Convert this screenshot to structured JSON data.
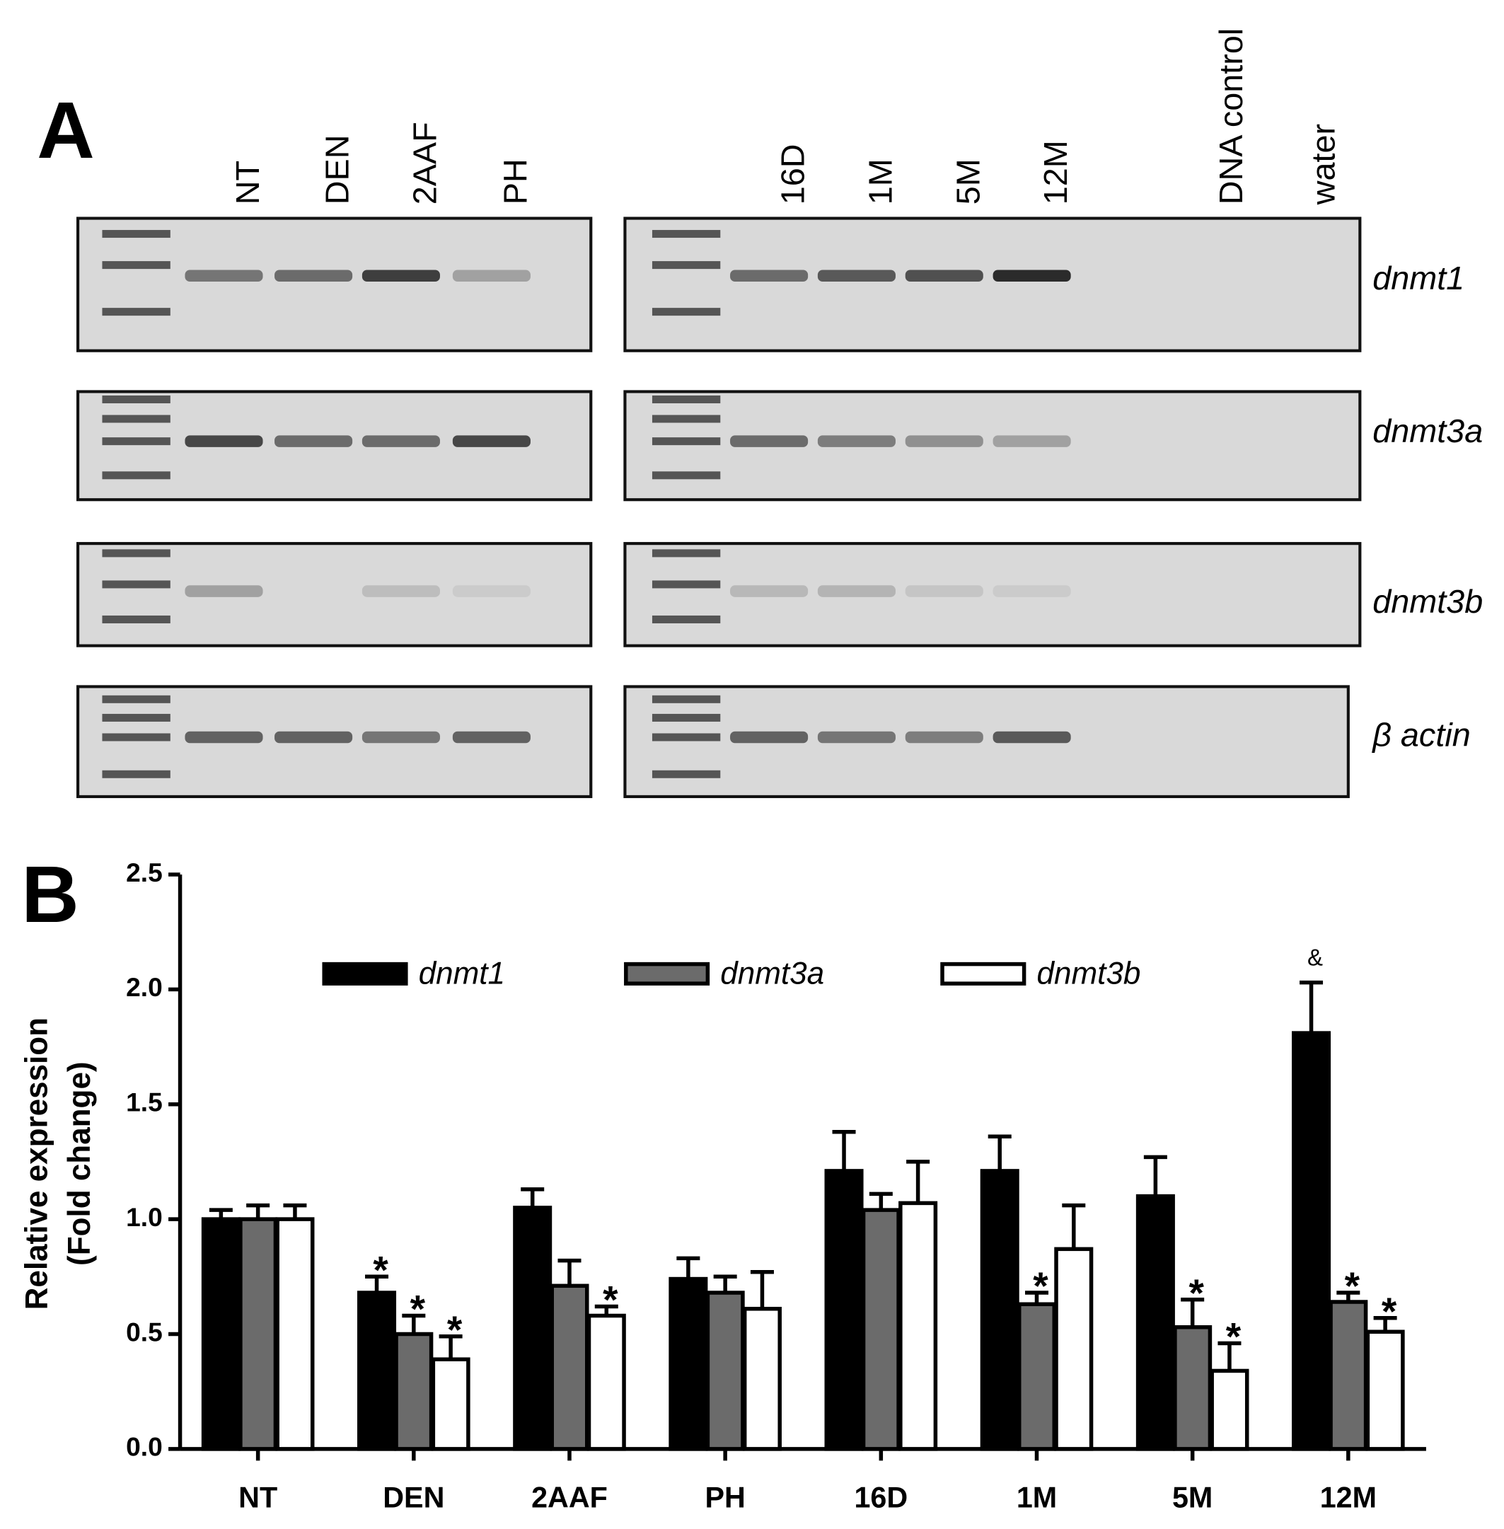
{
  "panel_labels": [
    "A",
    "B"
  ],
  "panel_a": {
    "left_lanes": [
      "NT",
      "DEN",
      "2AAF",
      "PH"
    ],
    "right_lanes": [
      "16D",
      "1M",
      "5M",
      "12M",
      "DNA control",
      "water"
    ],
    "genes": [
      "dnmt1",
      "dnmt3a",
      "dnmt3b",
      "β actin"
    ]
  },
  "chart_data": {
    "type": "bar",
    "y_label": [
      "Relative expression",
      "(Fold change)"
    ],
    "categories": [
      "NT",
      "DEN",
      "2AAF",
      "PH",
      "16D",
      "1M",
      "5M",
      "12M"
    ],
    "series": [
      {
        "name": "dnmt1",
        "color": "#000000",
        "values": [
          1.0,
          0.68,
          1.05,
          0.74,
          1.21,
          1.21,
          1.1,
          1.81
        ],
        "errors": [
          0.04,
          0.07,
          0.08,
          0.09,
          0.17,
          0.15,
          0.17,
          0.22
        ],
        "markers": [
          null,
          "*",
          null,
          null,
          null,
          null,
          null,
          "&"
        ]
      },
      {
        "name": "dnmt3a",
        "color": "#6b6b6b",
        "values": [
          1.0,
          0.5,
          0.71,
          0.68,
          1.04,
          0.63,
          0.53,
          0.64
        ],
        "errors": [
          0.06,
          0.08,
          0.11,
          0.07,
          0.07,
          0.05,
          0.12,
          0.04
        ],
        "markers": [
          null,
          "*",
          null,
          null,
          null,
          "*",
          "*",
          "*"
        ]
      },
      {
        "name": "dnmt3b",
        "color": "#ffffff",
        "values": [
          1.0,
          0.39,
          0.58,
          0.61,
          1.07,
          0.87,
          0.34,
          0.51
        ],
        "errors": [
          0.06,
          0.1,
          0.04,
          0.16,
          0.18,
          0.19,
          0.12,
          0.06
        ],
        "markers": [
          null,
          "*",
          "*",
          null,
          null,
          null,
          "*",
          "*"
        ]
      }
    ],
    "ylim": [
      0,
      2.5
    ],
    "yticks": [
      {
        "value": 0,
        "label": "0.0"
      },
      0.5,
      {
        "value": 1,
        "label": "1.0"
      },
      1.5,
      {
        "value": 2,
        "label": "2.0"
      },
      2.5
    ],
    "legend": "top"
  }
}
